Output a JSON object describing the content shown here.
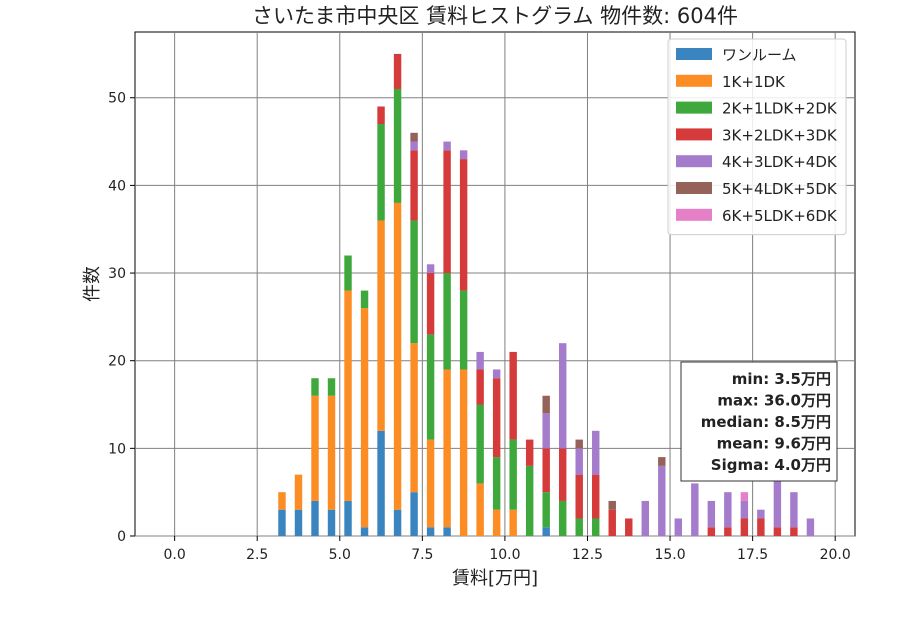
{
  "chart_data": {
    "type": "bar",
    "stacked": true,
    "title": "さいたま市中央区 賃料ヒストグラム  物件数: 604件",
    "xlabel": "賃料[万円]",
    "ylabel": "件数",
    "xlim": [
      -1.2,
      20.6
    ],
    "ylim": [
      0,
      57.5
    ],
    "x_ticks": [
      0.0,
      2.5,
      5.0,
      7.5,
      10.0,
      12.5,
      15.0,
      17.5,
      20.0
    ],
    "x_tick_labels": [
      "0.0",
      "2.5",
      "5.0",
      "7.5",
      "10.0",
      "12.5",
      "15.0",
      "17.5",
      "20.0"
    ],
    "y_ticks": [
      0,
      10,
      20,
      30,
      40,
      50
    ],
    "y_tick_labels": [
      "0",
      "10",
      "20",
      "30",
      "40",
      "50"
    ],
    "grid": true,
    "legend_position": "top-right",
    "bin_width": 0.25,
    "x": [
      3.25,
      3.5,
      3.75,
      4.0,
      4.25,
      4.5,
      4.75,
      5.0,
      5.25,
      5.5,
      5.75,
      6.0,
      6.25,
      6.5,
      6.75,
      7.0,
      7.25,
      7.5,
      7.75,
      8.0,
      8.25,
      8.5,
      8.75,
      9.0,
      9.25,
      9.5,
      9.75,
      10.0,
      10.25,
      10.5,
      10.75,
      11.0,
      11.25,
      11.5,
      11.75,
      12.0,
      12.25,
      12.5,
      12.75,
      13.0,
      13.25,
      13.5,
      13.75,
      14.0,
      14.25,
      14.5,
      14.75,
      15.0,
      15.25,
      15.5,
      15.75,
      16.0,
      16.25,
      16.5,
      16.75,
      17.0,
      17.25,
      17.5,
      17.75,
      18.0,
      18.25,
      18.5,
      18.75,
      19.0,
      19.25,
      19.5,
      19.75
    ],
    "series": [
      {
        "name": "ワンルーム",
        "color": "#3a85c0",
        "values": [
          3,
          0,
          3,
          0,
          4,
          0,
          3,
          0,
          4,
          0,
          1,
          0,
          12,
          0,
          3,
          0,
          5,
          0,
          1,
          0,
          1,
          0,
          0,
          0,
          0,
          0,
          0,
          0,
          0,
          0,
          0,
          0,
          1,
          0,
          0,
          0,
          0,
          0,
          0,
          0,
          0,
          0,
          0,
          0,
          0,
          0,
          0,
          0,
          0,
          0,
          0,
          0,
          0,
          0,
          0,
          0,
          0,
          0,
          0,
          0,
          0,
          0,
          0,
          0,
          0,
          0,
          0
        ]
      },
      {
        "name": "1K+1DK",
        "color": "#fc8c24",
        "values": [
          2,
          0,
          4,
          0,
          12,
          0,
          13,
          0,
          24,
          0,
          25,
          0,
          24,
          0,
          35,
          0,
          17,
          0,
          10,
          0,
          18,
          0,
          19,
          0,
          6,
          0,
          3,
          0,
          3,
          0,
          0,
          0,
          0,
          0,
          0,
          0,
          0,
          0,
          0,
          0,
          0,
          0,
          0,
          0,
          0,
          0,
          0,
          0,
          0,
          0,
          0,
          0,
          0,
          0,
          0,
          0,
          0,
          0,
          0,
          0,
          0,
          0,
          0,
          0,
          0,
          0,
          0
        ]
      },
      {
        "name": "2K+1LDK+2DK",
        "color": "#3ea83c",
        "values": [
          0,
          0,
          0,
          0,
          2,
          0,
          2,
          0,
          4,
          0,
          2,
          0,
          11,
          0,
          13,
          0,
          14,
          0,
          12,
          0,
          11,
          0,
          9,
          0,
          9,
          0,
          6,
          0,
          8,
          0,
          8,
          0,
          4,
          0,
          4,
          0,
          2,
          0,
          2,
          0,
          0,
          0,
          0,
          0,
          0,
          0,
          0,
          0,
          0,
          0,
          0,
          0,
          0,
          0,
          0,
          0,
          0,
          0,
          0,
          0,
          0,
          0,
          0,
          0,
          0,
          0,
          0
        ]
      },
      {
        "name": "3K+2LDK+3DK",
        "color": "#d63b3b",
        "values": [
          0,
          0,
          0,
          0,
          0,
          0,
          0,
          0,
          0,
          0,
          0,
          0,
          2,
          0,
          4,
          0,
          8,
          0,
          7,
          0,
          14,
          0,
          15,
          0,
          4,
          0,
          9,
          0,
          10,
          0,
          3,
          0,
          5,
          0,
          6,
          0,
          5,
          0,
          5,
          0,
          3,
          0,
          2,
          0,
          0,
          0,
          0,
          0,
          0,
          0,
          0,
          0,
          1,
          0,
          1,
          0,
          2,
          0,
          2,
          0,
          1,
          0,
          1,
          0,
          0,
          0,
          0
        ]
      },
      {
        "name": "4K+3LDK+4DK",
        "color": "#a57ccb",
        "values": [
          0,
          0,
          0,
          0,
          0,
          0,
          0,
          0,
          0,
          0,
          0,
          0,
          0,
          0,
          0,
          0,
          1,
          0,
          1,
          0,
          1,
          0,
          1,
          0,
          2,
          0,
          1,
          0,
          0,
          0,
          0,
          0,
          4,
          0,
          12,
          0,
          3,
          0,
          5,
          0,
          0,
          0,
          0,
          0,
          4,
          0,
          8,
          0,
          2,
          0,
          6,
          0,
          3,
          0,
          4,
          0,
          2,
          0,
          1,
          0,
          6,
          0,
          4,
          0,
          2,
          0,
          0
        ]
      },
      {
        "name": "5K+4LDK+5DK",
        "color": "#946259",
        "values": [
          0,
          0,
          0,
          0,
          0,
          0,
          0,
          0,
          0,
          0,
          0,
          0,
          0,
          0,
          0,
          0,
          1,
          0,
          0,
          0,
          0,
          0,
          0,
          0,
          0,
          0,
          0,
          0,
          0,
          0,
          0,
          0,
          2,
          0,
          0,
          0,
          1,
          0,
          0,
          0,
          1,
          0,
          0,
          0,
          0,
          0,
          1,
          0,
          0,
          0,
          0,
          0,
          0,
          0,
          0,
          0,
          0,
          0,
          0,
          0,
          1,
          0,
          0,
          0,
          0,
          0,
          0
        ]
      },
      {
        "name": "6K+5LDK+6DK",
        "color": "#e57fc8",
        "values": [
          0,
          0,
          0,
          0,
          0,
          0,
          0,
          0,
          0,
          0,
          0,
          0,
          0,
          0,
          0,
          0,
          0,
          0,
          0,
          0,
          0,
          0,
          0,
          0,
          0,
          0,
          0,
          0,
          0,
          0,
          0,
          0,
          0,
          0,
          0,
          0,
          0,
          0,
          0,
          0,
          0,
          0,
          0,
          0,
          0,
          0,
          0,
          0,
          0,
          0,
          0,
          0,
          0,
          0,
          0,
          0,
          1,
          0,
          0,
          0,
          0,
          0,
          0,
          0,
          0,
          0,
          0
        ]
      }
    ],
    "stats_lines": [
      "min: 3.5万円",
      "max: 36.0万円",
      "median: 8.5万円",
      "mean: 9.6万円",
      "Sigma: 4.0万円"
    ]
  }
}
